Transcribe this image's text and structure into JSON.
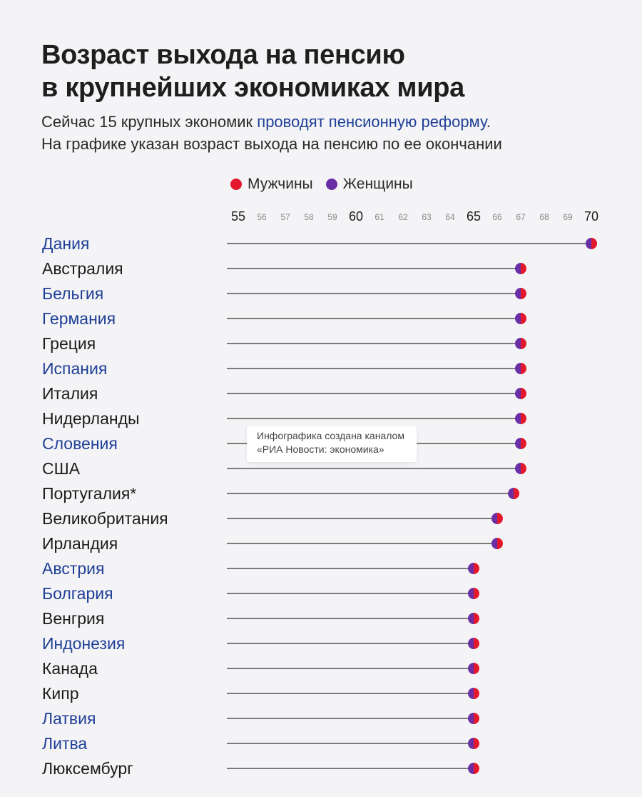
{
  "title": {
    "line1": "Возраст выхода на пенсию",
    "line2": "в крупнейших экономиках мира"
  },
  "subtitle": {
    "line1_pre": "Сейчас 15 крупных экономик ",
    "line1_link": "проводят пенсионную реформу",
    "line1_post": ".",
    "line2": "На графике указан возраст выхода на пенсию по ее окончании"
  },
  "legend": {
    "men": "Мужчины",
    "women": "Женщины"
  },
  "watermark": {
    "line1": "Инфографика создана каналом",
    "line2": "«РИА Новости: экономика»"
  },
  "colors": {
    "men": "#e3182d",
    "women": "#6b2fa5",
    "highlight_text": "#1f3f97",
    "text": "#1c1c1c",
    "line": "#333333"
  },
  "chart_data": {
    "type": "dot",
    "x_ticks": [
      55,
      56,
      57,
      58,
      59,
      60,
      61,
      62,
      63,
      64,
      65,
      66,
      67,
      68,
      69,
      70
    ],
    "major_ticks": [
      55,
      60,
      65,
      70
    ],
    "xlim": [
      55,
      70
    ],
    "series": [
      {
        "name": "Мужчины"
      },
      {
        "name": "Женщины"
      }
    ],
    "rows": [
      {
        "country": "Дания",
        "highlight": true,
        "men": 70,
        "women": 70
      },
      {
        "country": "Австралия",
        "highlight": false,
        "men": 67,
        "women": 67
      },
      {
        "country": "Бельгия",
        "highlight": true,
        "men": 67,
        "women": 67
      },
      {
        "country": "Германия",
        "highlight": true,
        "men": 67,
        "women": 67
      },
      {
        "country": "Греция",
        "highlight": false,
        "men": 67,
        "women": 67
      },
      {
        "country": "Испания",
        "highlight": true,
        "men": 67,
        "women": 67
      },
      {
        "country": "Италия",
        "highlight": false,
        "men": 67,
        "women": 67
      },
      {
        "country": "Нидерланды",
        "highlight": false,
        "men": 67,
        "women": 67
      },
      {
        "country": "Словения",
        "highlight": true,
        "men": 67,
        "women": 67
      },
      {
        "country": "США",
        "highlight": false,
        "men": 67,
        "women": 67
      },
      {
        "country": "Португалия*",
        "highlight": false,
        "men": 66.7,
        "women": 66.7
      },
      {
        "country": "Великобритания",
        "highlight": false,
        "men": 66,
        "women": 66
      },
      {
        "country": "Ирландия",
        "highlight": false,
        "men": 66,
        "women": 66
      },
      {
        "country": "Австрия",
        "highlight": true,
        "men": 65,
        "women": 65
      },
      {
        "country": "Болгария",
        "highlight": true,
        "men": 65,
        "women": 65
      },
      {
        "country": "Венгрия",
        "highlight": false,
        "men": 65,
        "women": 65
      },
      {
        "country": "Индонезия",
        "highlight": true,
        "men": 65,
        "women": 65
      },
      {
        "country": "Канада",
        "highlight": false,
        "men": 65,
        "women": 65
      },
      {
        "country": "Кипр",
        "highlight": false,
        "men": 65,
        "women": 65
      },
      {
        "country": "Латвия",
        "highlight": true,
        "men": 65,
        "women": 65
      },
      {
        "country": "Литва",
        "highlight": true,
        "men": 65,
        "women": 65
      },
      {
        "country": "Люксембург",
        "highlight": false,
        "men": 65,
        "women": 65
      }
    ]
  }
}
